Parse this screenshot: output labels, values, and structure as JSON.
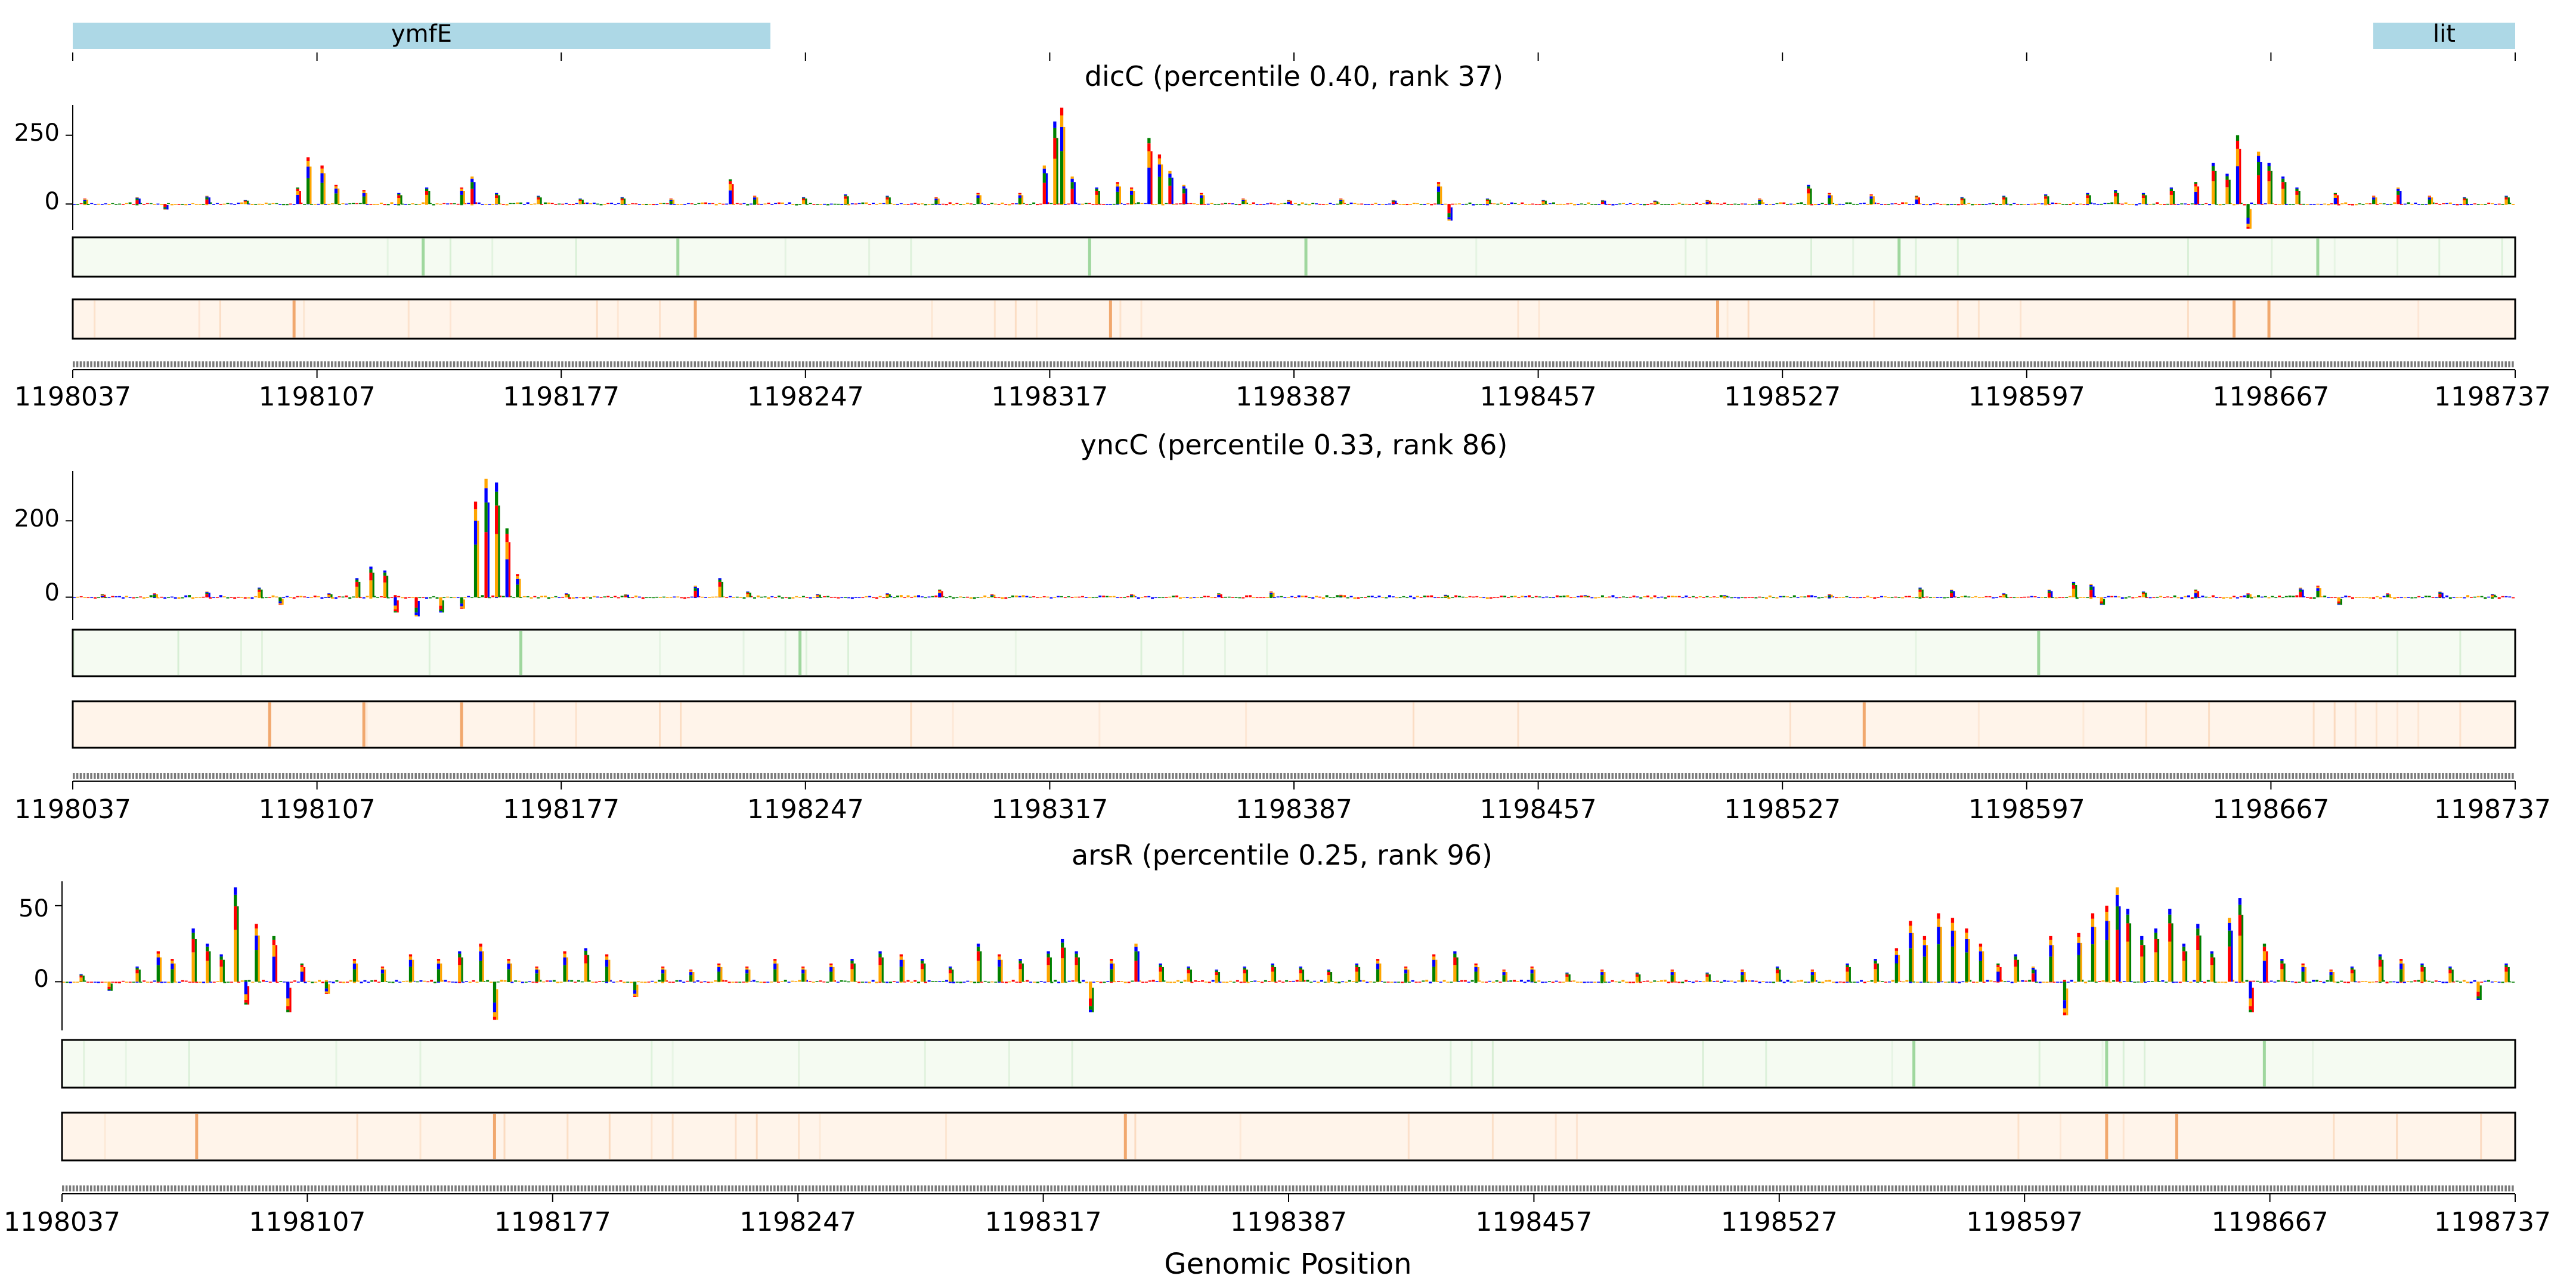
{
  "chart_data": [
    {
      "type": "gene-annotation-track",
      "genes": [
        {
          "name": "ymfE",
          "start": 1198037,
          "end": 1198238
        },
        {
          "name": "lit",
          "start": 1198696,
          "end": 1198737
        }
      ]
    },
    {
      "type": "sequence-logo-track",
      "title": "dicC (percentile 0.40, rank 37)",
      "tf": "dicC",
      "percentile": 0.4,
      "rank": 37,
      "xlim": [
        1198037,
        1198737
      ],
      "ylim": [
        -95,
        360
      ],
      "yticks": [
        0,
        250
      ],
      "xticks": [
        "1198037",
        "1198107",
        "1198177",
        "1198247",
        "1198317",
        "1198387",
        "1198457",
        "1198527",
        "1198597",
        "1198667",
        "1198737"
      ],
      "peaks": [
        {
          "x": 1198040,
          "v": 20
        },
        {
          "x": 1198055,
          "v": 25
        },
        {
          "x": 1198063,
          "v": -20
        },
        {
          "x": 1198075,
          "v": 30
        },
        {
          "x": 1198086,
          "v": 15
        },
        {
          "x": 1198101,
          "v": 60
        },
        {
          "x": 1198104,
          "v": 170
        },
        {
          "x": 1198108,
          "v": 140
        },
        {
          "x": 1198112,
          "v": 70
        },
        {
          "x": 1198120,
          "v": 50
        },
        {
          "x": 1198130,
          "v": 40
        },
        {
          "x": 1198138,
          "v": 60
        },
        {
          "x": 1198148,
          "v": 60
        },
        {
          "x": 1198151,
          "v": 100
        },
        {
          "x": 1198158,
          "v": 40
        },
        {
          "x": 1198170,
          "v": 30
        },
        {
          "x": 1198182,
          "v": 20
        },
        {
          "x": 1198194,
          "v": 25
        },
        {
          "x": 1198208,
          "v": 20
        },
        {
          "x": 1198225,
          "v": 90
        },
        {
          "x": 1198232,
          "v": 30
        },
        {
          "x": 1198246,
          "v": 25
        },
        {
          "x": 1198258,
          "v": 35
        },
        {
          "x": 1198270,
          "v": 30
        },
        {
          "x": 1198284,
          "v": 25
        },
        {
          "x": 1198296,
          "v": 40
        },
        {
          "x": 1198308,
          "v": 40
        },
        {
          "x": 1198315,
          "v": 140
        },
        {
          "x": 1198318,
          "v": 300
        },
        {
          "x": 1198320,
          "v": 350
        },
        {
          "x": 1198323,
          "v": 100
        },
        {
          "x": 1198330,
          "v": 60
        },
        {
          "x": 1198336,
          "v": 80
        },
        {
          "x": 1198340,
          "v": 60
        },
        {
          "x": 1198345,
          "v": 240
        },
        {
          "x": 1198348,
          "v": 180
        },
        {
          "x": 1198351,
          "v": 120
        },
        {
          "x": 1198355,
          "v": 70
        },
        {
          "x": 1198360,
          "v": 40
        },
        {
          "x": 1198372,
          "v": 20
        },
        {
          "x": 1198385,
          "v": 15
        },
        {
          "x": 1198400,
          "v": 20
        },
        {
          "x": 1198415,
          "v": 15
        },
        {
          "x": 1198428,
          "v": 80
        },
        {
          "x": 1198431,
          "v": -60
        },
        {
          "x": 1198442,
          "v": 20
        },
        {
          "x": 1198458,
          "v": 15
        },
        {
          "x": 1198475,
          "v": 15
        },
        {
          "x": 1198490,
          "v": 12
        },
        {
          "x": 1198505,
          "v": 15
        },
        {
          "x": 1198520,
          "v": 20
        },
        {
          "x": 1198534,
          "v": 70
        },
        {
          "x": 1198540,
          "v": 40
        },
        {
          "x": 1198552,
          "v": 35
        },
        {
          "x": 1198565,
          "v": 30
        },
        {
          "x": 1198578,
          "v": 25
        },
        {
          "x": 1198590,
          "v": 30
        },
        {
          "x": 1198602,
          "v": 35
        },
        {
          "x": 1198614,
          "v": 40
        },
        {
          "x": 1198622,
          "v": 50
        },
        {
          "x": 1198630,
          "v": 40
        },
        {
          "x": 1198638,
          "v": 60
        },
        {
          "x": 1198645,
          "v": 80
        },
        {
          "x": 1198650,
          "v": 150
        },
        {
          "x": 1198654,
          "v": 110
        },
        {
          "x": 1198657,
          "v": 250
        },
        {
          "x": 1198660,
          "v": -90
        },
        {
          "x": 1198663,
          "v": 190
        },
        {
          "x": 1198666,
          "v": 150
        },
        {
          "x": 1198670,
          "v": 100
        },
        {
          "x": 1198674,
          "v": 60
        },
        {
          "x": 1198685,
          "v": 40
        },
        {
          "x": 1198696,
          "v": 30
        },
        {
          "x": 1198703,
          "v": 60
        },
        {
          "x": 1198712,
          "v": 30
        },
        {
          "x": 1198722,
          "v": 25
        },
        {
          "x": 1198734,
          "v": 30
        }
      ],
      "heatmap_green_peaks": [
        1198137,
        1198210,
        1198328,
        1198390,
        1198560,
        1198680
      ],
      "heatmap_orange_peaks": [
        1198100,
        1198215,
        1198334,
        1198508,
        1198656,
        1198666
      ]
    },
    {
      "type": "sequence-logo-track",
      "title": "yncC (percentile 0.33, rank 86)",
      "tf": "yncC",
      "percentile": 0.33,
      "rank": 86,
      "xlim": [
        1198037,
        1198737
      ],
      "ylim": [
        -60,
        330
      ],
      "yticks": [
        0,
        200
      ],
      "xticks": [
        "1198037",
        "1198107",
        "1198177",
        "1198247",
        "1198317",
        "1198387",
        "1198457",
        "1198527",
        "1198597",
        "1198667",
        "1198737"
      ],
      "peaks": [
        {
          "x": 1198045,
          "v": 8
        },
        {
          "x": 1198060,
          "v": 10
        },
        {
          "x": 1198075,
          "v": 15
        },
        {
          "x": 1198090,
          "v": 25
        },
        {
          "x": 1198096,
          "v": -20
        },
        {
          "x": 1198110,
          "v": 10
        },
        {
          "x": 1198118,
          "v": 50
        },
        {
          "x": 1198122,
          "v": 80
        },
        {
          "x": 1198126,
          "v": 70
        },
        {
          "x": 1198129,
          "v": -40
        },
        {
          "x": 1198135,
          "v": -50
        },
        {
          "x": 1198142,
          "v": -40
        },
        {
          "x": 1198148,
          "v": -30
        },
        {
          "x": 1198152,
          "v": 250
        },
        {
          "x": 1198155,
          "v": 310
        },
        {
          "x": 1198158,
          "v": 300
        },
        {
          "x": 1198161,
          "v": 180
        },
        {
          "x": 1198164,
          "v": 60
        },
        {
          "x": 1198178,
          "v": 10
        },
        {
          "x": 1198195,
          "v": 8
        },
        {
          "x": 1198215,
          "v": 30
        },
        {
          "x": 1198222,
          "v": 50
        },
        {
          "x": 1198230,
          "v": 15
        },
        {
          "x": 1198250,
          "v": 8
        },
        {
          "x": 1198270,
          "v": 10
        },
        {
          "x": 1198285,
          "v": 20
        },
        {
          "x": 1198300,
          "v": 8
        },
        {
          "x": 1198340,
          "v": 8
        },
        {
          "x": 1198365,
          "v": 10
        },
        {
          "x": 1198380,
          "v": 15
        },
        {
          "x": 1198400,
          "v": 6
        },
        {
          "x": 1198430,
          "v": 6
        },
        {
          "x": 1198470,
          "v": 5
        },
        {
          "x": 1198510,
          "v": 5
        },
        {
          "x": 1198540,
          "v": 8
        },
        {
          "x": 1198566,
          "v": 25
        },
        {
          "x": 1198575,
          "v": 20
        },
        {
          "x": 1198590,
          "v": 10
        },
        {
          "x": 1198603,
          "v": 20
        },
        {
          "x": 1198610,
          "v": 40
        },
        {
          "x": 1198615,
          "v": 35
        },
        {
          "x": 1198618,
          "v": -20
        },
        {
          "x": 1198630,
          "v": 15
        },
        {
          "x": 1198645,
          "v": 20
        },
        {
          "x": 1198660,
          "v": 10
        },
        {
          "x": 1198675,
          "v": 25
        },
        {
          "x": 1198680,
          "v": 30
        },
        {
          "x": 1198686,
          "v": -20
        },
        {
          "x": 1198700,
          "v": 10
        },
        {
          "x": 1198715,
          "v": 15
        },
        {
          "x": 1198730,
          "v": 8
        }
      ],
      "heatmap_green_peaks": [
        1198165,
        1198245,
        1198600
      ],
      "heatmap_orange_peaks": [
        1198093,
        1198120,
        1198148,
        1198550
      ]
    },
    {
      "type": "sequence-logo-track",
      "title": "arsR (percentile 0.25, rank 96)",
      "tf": "arsR",
      "percentile": 0.25,
      "rank": 96,
      "xlim": [
        1198037,
        1198737
      ],
      "ylim": [
        -32,
        66
      ],
      "yticks": [
        0,
        50
      ],
      "xticks": [
        "1198037",
        "1198107",
        "1198177",
        "1198247",
        "1198317",
        "1198387",
        "1198457",
        "1198527",
        "1198597",
        "1198667",
        "1198737"
      ],
      "xlabel": "Genomic Position",
      "peaks": [
        {
          "x": 1198042,
          "v": 5
        },
        {
          "x": 1198050,
          "v": -6
        },
        {
          "x": 1198058,
          "v": 10
        },
        {
          "x": 1198064,
          "v": 20
        },
        {
          "x": 1198068,
          "v": 15
        },
        {
          "x": 1198074,
          "v": 35
        },
        {
          "x": 1198078,
          "v": 25
        },
        {
          "x": 1198082,
          "v": 18
        },
        {
          "x": 1198086,
          "v": 62
        },
        {
          "x": 1198089,
          "v": -15
        },
        {
          "x": 1198092,
          "v": 38
        },
        {
          "x": 1198097,
          "v": 30
        },
        {
          "x": 1198101,
          "v": -20
        },
        {
          "x": 1198105,
          "v": 12
        },
        {
          "x": 1198112,
          "v": -8
        },
        {
          "x": 1198120,
          "v": 15
        },
        {
          "x": 1198128,
          "v": 10
        },
        {
          "x": 1198136,
          "v": 18
        },
        {
          "x": 1198144,
          "v": 15
        },
        {
          "x": 1198150,
          "v": 20
        },
        {
          "x": 1198156,
          "v": 25
        },
        {
          "x": 1198160,
          "v": -25
        },
        {
          "x": 1198164,
          "v": 15
        },
        {
          "x": 1198172,
          "v": 10
        },
        {
          "x": 1198180,
          "v": 20
        },
        {
          "x": 1198186,
          "v": 22
        },
        {
          "x": 1198192,
          "v": 18
        },
        {
          "x": 1198200,
          "v": -10
        },
        {
          "x": 1198208,
          "v": 10
        },
        {
          "x": 1198216,
          "v": 8
        },
        {
          "x": 1198224,
          "v": 12
        },
        {
          "x": 1198232,
          "v": 10
        },
        {
          "x": 1198240,
          "v": 15
        },
        {
          "x": 1198248,
          "v": 10
        },
        {
          "x": 1198256,
          "v": 12
        },
        {
          "x": 1198262,
          "v": 15
        },
        {
          "x": 1198270,
          "v": 20
        },
        {
          "x": 1198276,
          "v": 18
        },
        {
          "x": 1198282,
          "v": 15
        },
        {
          "x": 1198290,
          "v": 10
        },
        {
          "x": 1198298,
          "v": 25
        },
        {
          "x": 1198304,
          "v": 18
        },
        {
          "x": 1198310,
          "v": 15
        },
        {
          "x": 1198318,
          "v": 20
        },
        {
          "x": 1198322,
          "v": 28
        },
        {
          "x": 1198326,
          "v": 20
        },
        {
          "x": 1198330,
          "v": -20
        },
        {
          "x": 1198336,
          "v": 15
        },
        {
          "x": 1198343,
          "v": 25
        },
        {
          "x": 1198350,
          "v": 12
        },
        {
          "x": 1198358,
          "v": 10
        },
        {
          "x": 1198366,
          "v": 8
        },
        {
          "x": 1198374,
          "v": 10
        },
        {
          "x": 1198382,
          "v": 12
        },
        {
          "x": 1198390,
          "v": 10
        },
        {
          "x": 1198398,
          "v": 8
        },
        {
          "x": 1198406,
          "v": 12
        },
        {
          "x": 1198412,
          "v": 15
        },
        {
          "x": 1198420,
          "v": 10
        },
        {
          "x": 1198428,
          "v": 18
        },
        {
          "x": 1198434,
          "v": 20
        },
        {
          "x": 1198440,
          "v": 12
        },
        {
          "x": 1198448,
          "v": 8
        },
        {
          "x": 1198456,
          "v": 10
        },
        {
          "x": 1198466,
          "v": 6
        },
        {
          "x": 1198476,
          "v": 8
        },
        {
          "x": 1198486,
          "v": 6
        },
        {
          "x": 1198496,
          "v": 8
        },
        {
          "x": 1198506,
          "v": 6
        },
        {
          "x": 1198516,
          "v": 8
        },
        {
          "x": 1198526,
          "v": 10
        },
        {
          "x": 1198536,
          "v": 8
        },
        {
          "x": 1198546,
          "v": 12
        },
        {
          "x": 1198554,
          "v": 15
        },
        {
          "x": 1198560,
          "v": 22
        },
        {
          "x": 1198564,
          "v": 40
        },
        {
          "x": 1198568,
          "v": 30
        },
        {
          "x": 1198572,
          "v": 45
        },
        {
          "x": 1198576,
          "v": 42
        },
        {
          "x": 1198580,
          "v": 35
        },
        {
          "x": 1198584,
          "v": 25
        },
        {
          "x": 1198589,
          "v": 12
        },
        {
          "x": 1198594,
          "v": 18
        },
        {
          "x": 1198599,
          "v": 10
        },
        {
          "x": 1198604,
          "v": 30
        },
        {
          "x": 1198608,
          "v": -22
        },
        {
          "x": 1198612,
          "v": 32
        },
        {
          "x": 1198616,
          "v": 45
        },
        {
          "x": 1198620,
          "v": 50
        },
        {
          "x": 1198623,
          "v": 62
        },
        {
          "x": 1198626,
          "v": 48
        },
        {
          "x": 1198630,
          "v": 30
        },
        {
          "x": 1198634,
          "v": 35
        },
        {
          "x": 1198638,
          "v": 48
        },
        {
          "x": 1198642,
          "v": 25
        },
        {
          "x": 1198646,
          "v": 38
        },
        {
          "x": 1198650,
          "v": 20
        },
        {
          "x": 1198655,
          "v": 42
        },
        {
          "x": 1198658,
          "v": 55
        },
        {
          "x": 1198661,
          "v": -20
        },
        {
          "x": 1198665,
          "v": 25
        },
        {
          "x": 1198670,
          "v": 15
        },
        {
          "x": 1198676,
          "v": 12
        },
        {
          "x": 1198684,
          "v": 8
        },
        {
          "x": 1198690,
          "v": 10
        },
        {
          "x": 1198698,
          "v": 18
        },
        {
          "x": 1198704,
          "v": 15
        },
        {
          "x": 1198710,
          "v": 12
        },
        {
          "x": 1198718,
          "v": 10
        },
        {
          "x": 1198726,
          "v": -12
        },
        {
          "x": 1198734,
          "v": 12
        }
      ],
      "heatmap_green_peaks": [
        1198565,
        1198620,
        1198665
      ],
      "heatmap_orange_peaks": [
        1198075,
        1198160,
        1198340,
        1198620,
        1198640
      ]
    }
  ],
  "colors": {
    "base_A": "#008000",
    "base_C": "#0000ff",
    "base_G": "#ffa500",
    "base_T": "#ff0000",
    "gene_fill": "#add8e6",
    "heat_green_bg": "#f5fbf2",
    "heat_green_peak": "#8fd08f",
    "heat_orange_bg": "#fff4ea",
    "heat_orange_peak": "#f0a060"
  }
}
